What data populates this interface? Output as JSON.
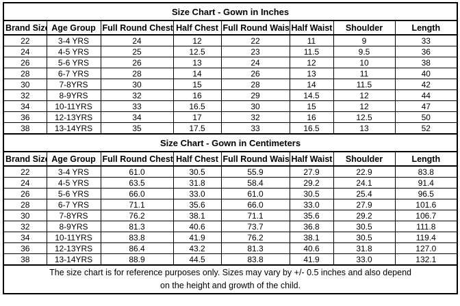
{
  "page": {
    "background_color": "#ffffff",
    "border_color": "#000000",
    "text_color": "#000000"
  },
  "columns": [
    "Brand Size",
    "Age Group",
    "Full Round Chest",
    "Half Chest",
    "Full Round Waist",
    "Half Waist",
    "Shoulder",
    "Length"
  ],
  "inches": {
    "title": "Size Chart - Gown in Inches",
    "rows": [
      [
        "22",
        "3-4 YRS",
        "24",
        "12",
        "22",
        "11",
        "9",
        "33"
      ],
      [
        "24",
        "4-5 YRS",
        "25",
        "12.5",
        "23",
        "11.5",
        "9.5",
        "36"
      ],
      [
        "26",
        "5-6 YRS",
        "26",
        "13",
        "24",
        "12",
        "10",
        "38"
      ],
      [
        "28",
        "6-7 YRS",
        "28",
        "14",
        "26",
        "13",
        "11",
        "40"
      ],
      [
        "30",
        "7-8YRS",
        "30",
        "15",
        "28",
        "14",
        "11.5",
        "42"
      ],
      [
        "32",
        "8-9YRS",
        "32",
        "16",
        "29",
        "14.5",
        "12",
        "44"
      ],
      [
        "34",
        "10-11YRS",
        "33",
        "16.5",
        "30",
        "15",
        "12",
        "47"
      ],
      [
        "36",
        "12-13YRS",
        "34",
        "17",
        "32",
        "16",
        "12.5",
        "50"
      ],
      [
        "38",
        "13-14YRS",
        "35",
        "17.5",
        "33",
        "16.5",
        "13",
        "52"
      ]
    ]
  },
  "centimeters": {
    "title": "Size Chart - Gown in Centimeters",
    "rows": [
      [
        "22",
        "3-4 YRS",
        "61.0",
        "30.5",
        "55.9",
        "27.9",
        "22.9",
        "83.8"
      ],
      [
        "24",
        "4-5 YRS",
        "63.5",
        "31.8",
        "58.4",
        "29.2",
        "24.1",
        "91.4"
      ],
      [
        "26",
        "5-6 YRS",
        "66.0",
        "33.0",
        "61.0",
        "30.5",
        "25.4",
        "96.5"
      ],
      [
        "28",
        "6-7 YRS",
        "71.1",
        "35.6",
        "66.0",
        "33.0",
        "27.9",
        "101.6"
      ],
      [
        "30",
        "7-8YRS",
        "76.2",
        "38.1",
        "71.1",
        "35.6",
        "29.2",
        "106.7"
      ],
      [
        "32",
        "8-9YRS",
        "81.3",
        "40.6",
        "73.7",
        "36.8",
        "30.5",
        "111.8"
      ],
      [
        "34",
        "10-11YRS",
        "83.8",
        "41.9",
        "76.2",
        "38.1",
        "30.5",
        "119.4"
      ],
      [
        "36",
        "12-13YRS",
        "86.4",
        "43.2",
        "81.3",
        "40.6",
        "31.8",
        "127.0"
      ],
      [
        "38",
        "13-14YRS",
        "88.9",
        "44.5",
        "83.8",
        "41.9",
        "33.0",
        "132.1"
      ]
    ]
  },
  "footer": {
    "line1": "The size chart is for reference purposes only. Sizes may vary by +/- 0.5 inches and also depend",
    "line2": "on the height and growth of the child."
  }
}
